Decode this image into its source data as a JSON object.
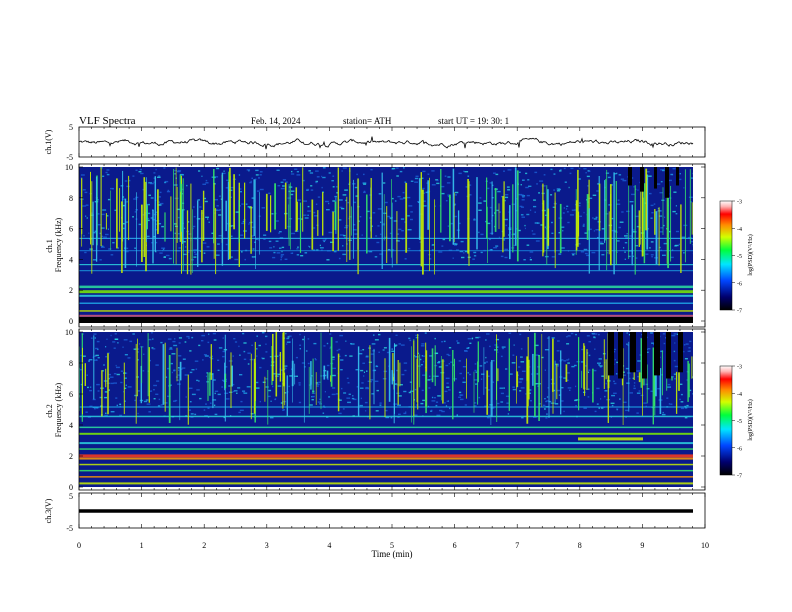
{
  "header": {
    "title": "VLF  Spectra",
    "date": "Feb. 14, 2024",
    "station": "station= ATH",
    "start": "start  UT  =    19: 30: 1"
  },
  "chart_data": [
    {
      "type": "line",
      "name": "ch1-waveform",
      "ylabel": "ch.1(V)",
      "ylim": [
        -5,
        5
      ],
      "yticks": [
        "5",
        "-5"
      ],
      "xlim": [
        0,
        10
      ],
      "note": "noisy waveform centred near 0 V with small fluctuations (about -1.5 to +1 V)"
    },
    {
      "type": "heatmap",
      "name": "ch1-spectrogram",
      "ylabel": "ch.1\nFrequency (kHz)",
      "ylim": [
        0,
        10
      ],
      "yticks": [
        "0",
        "2",
        "4",
        "6",
        "8",
        "10"
      ],
      "xlim": [
        0,
        9.83
      ],
      "colorbar": {
        "label": "log(PSD)(V²/Hz)",
        "range": [
          -7,
          -3
        ],
        "ticks": [
          "-3",
          "-4",
          "-5",
          "-6",
          "-7"
        ]
      }
    },
    {
      "type": "heatmap",
      "name": "ch2-spectrogram",
      "ylabel": "ch.2\nFrequency (kHz)",
      "ylim": [
        0,
        10
      ],
      "yticks": [
        "0",
        "2",
        "4",
        "6",
        "8",
        "10"
      ],
      "xlim": [
        0,
        9.83
      ],
      "colorbar": {
        "label": "log(PSD)(V²/Hz)",
        "range": [
          -7,
          -3
        ],
        "ticks": [
          "-3",
          "-4",
          "-5",
          "-6",
          "-7"
        ]
      }
    },
    {
      "type": "line",
      "name": "ch3-waveform",
      "ylabel": "ch.3(V)",
      "ylim": [
        -5,
        5
      ],
      "yticks": [
        "5",
        "-5"
      ],
      "xlim": [
        0,
        10
      ],
      "note": "flat thick line at about -1.7 V"
    }
  ],
  "xaxis": {
    "label": "Time  (min)",
    "ticks": [
      "0",
      "1",
      "2",
      "3",
      "4",
      "5",
      "6",
      "7",
      "8",
      "9",
      "10"
    ]
  },
  "colors": {
    "background": "#ffffff",
    "axis": "#000000",
    "spectrogram_base": "#0a1a8c"
  }
}
